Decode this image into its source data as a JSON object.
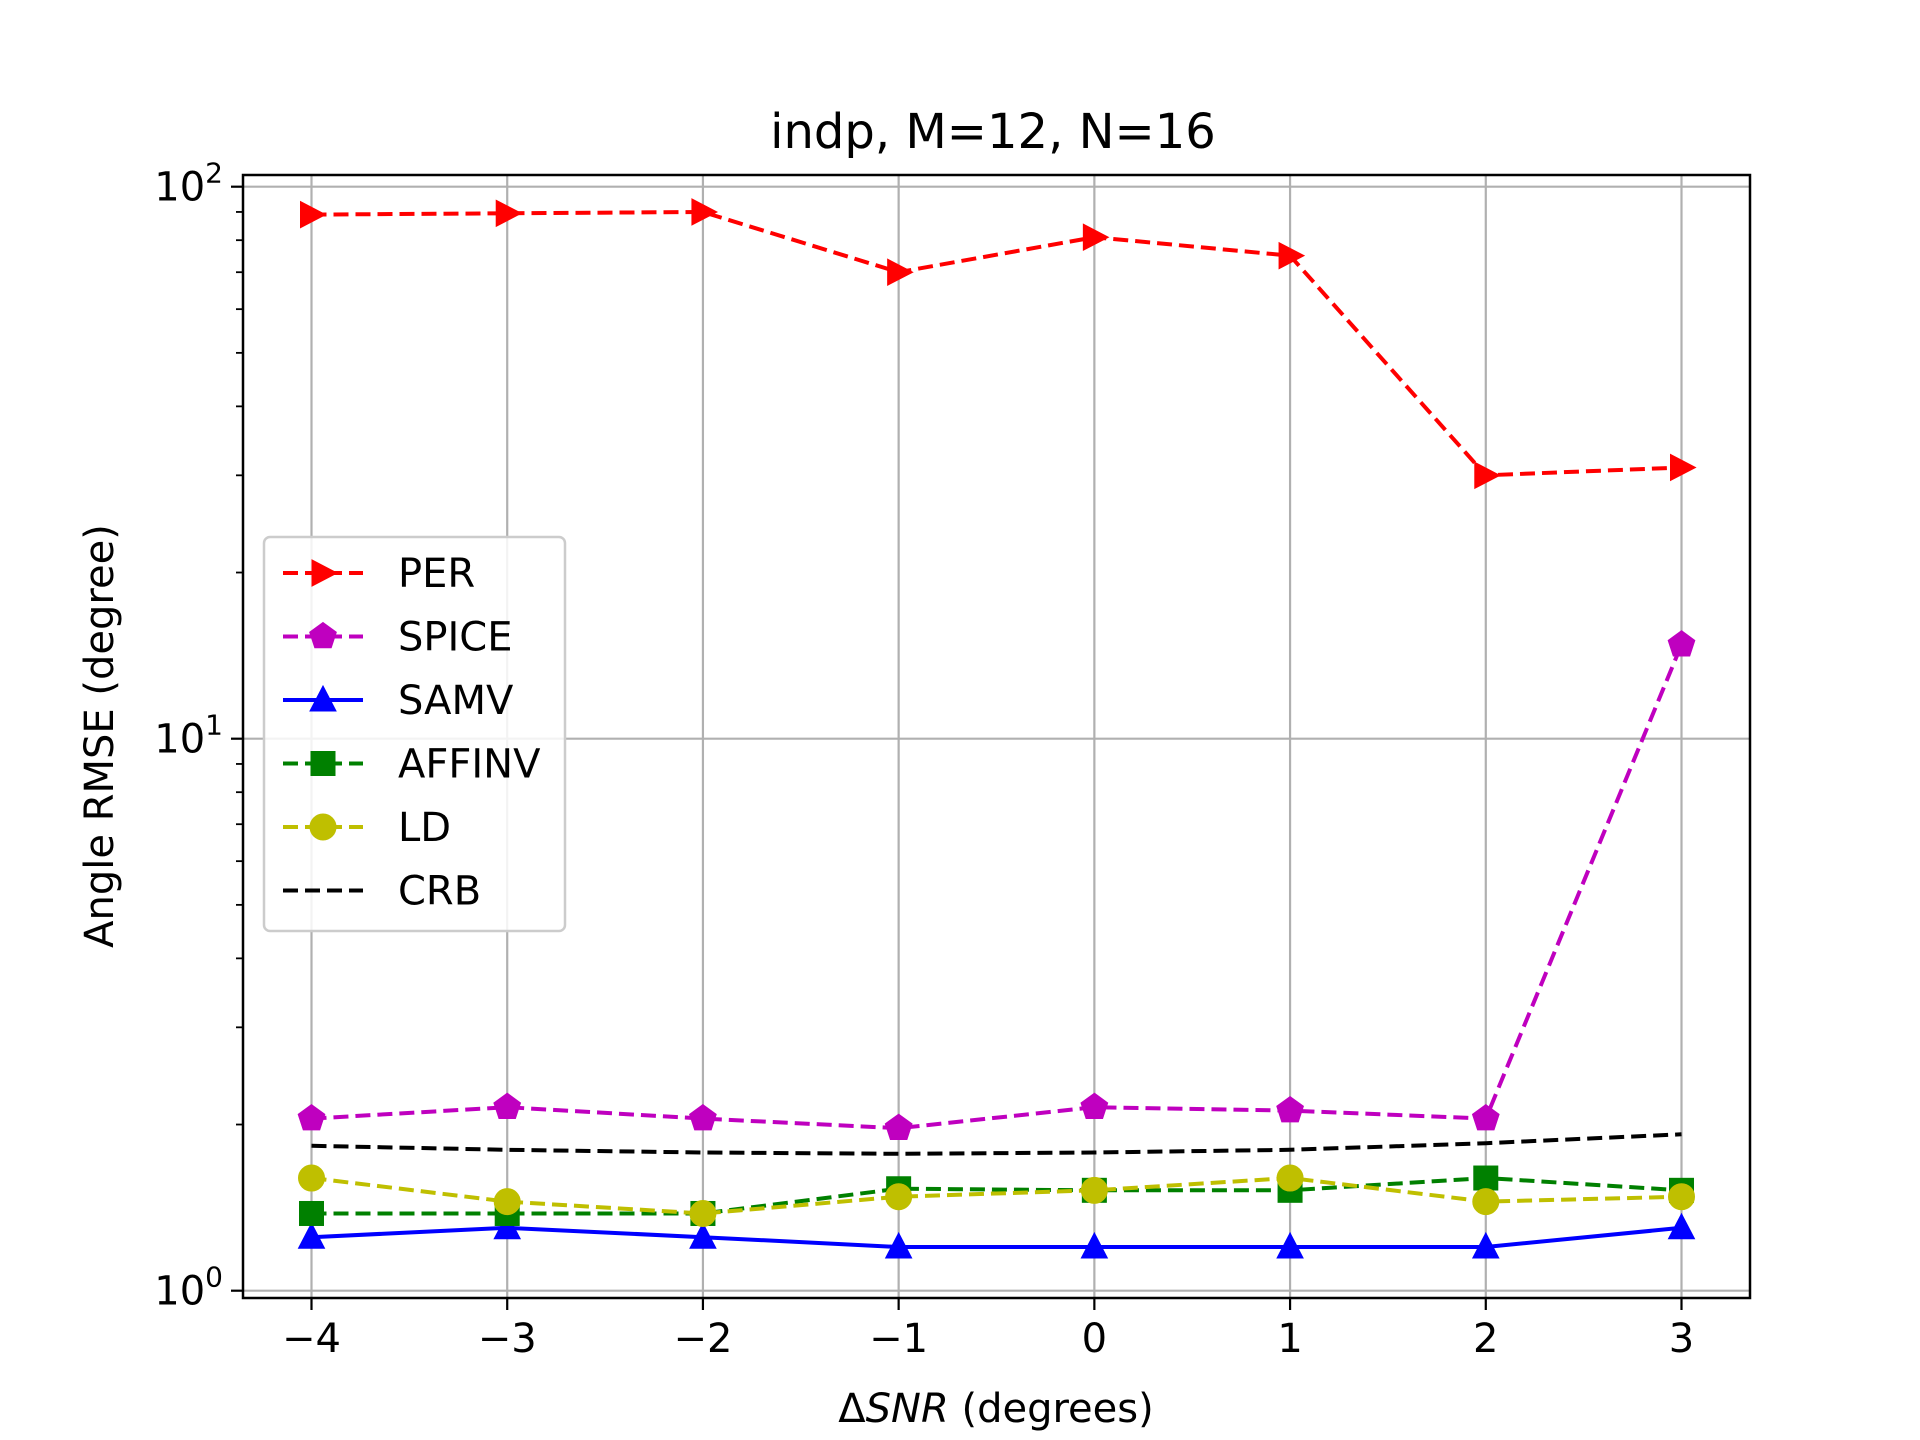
{
  "chart_data": {
    "type": "line",
    "title": "indp, M=12, N=16",
    "xlabel_prefix": "Δ",
    "xlabel_italic": "SNR",
    "xlabel_suffix": " (degrees)",
    "ylabel": "Angle RMSE (degree)",
    "yscale": "log",
    "xlim": [
      -4.35,
      3.35
    ],
    "ylim": [
      0.97,
      105
    ],
    "x_ticks": [
      -4,
      -3,
      -2,
      -1,
      0,
      1,
      2,
      3
    ],
    "x_tick_labels": [
      "−4",
      "−3",
      "−2",
      "−1",
      "0",
      "1",
      "2",
      "3"
    ],
    "y_ticks": [
      1,
      10,
      100
    ],
    "y_tick_labels": [
      {
        "base": "10",
        "exp": "0"
      },
      {
        "base": "10",
        "exp": "1"
      },
      {
        "base": "10",
        "exp": "2"
      }
    ],
    "grid": true,
    "legend_position": "center-left",
    "x": [
      -4,
      -3,
      -2,
      -1,
      0,
      1,
      2,
      3
    ],
    "series": [
      {
        "name": "PER",
        "color": "#ff0000",
        "dash": "dashed",
        "marker": "triangle-right",
        "values": [
          89,
          89.5,
          90,
          70,
          81,
          75,
          30,
          31
        ]
      },
      {
        "name": "SPICE",
        "color": "#bf00bf",
        "dash": "dashed",
        "marker": "pentagon",
        "values": [
          2.05,
          2.15,
          2.05,
          1.97,
          2.15,
          2.12,
          2.05,
          14.8
        ]
      },
      {
        "name": "SAMV",
        "color": "#0000ff",
        "dash": "solid",
        "marker": "triangle-up",
        "values": [
          1.25,
          1.3,
          1.25,
          1.2,
          1.2,
          1.2,
          1.2,
          1.3
        ]
      },
      {
        "name": "AFFINV",
        "color": "#008000",
        "dash": "dashed",
        "marker": "square",
        "values": [
          1.38,
          1.38,
          1.38,
          1.53,
          1.52,
          1.52,
          1.6,
          1.52
        ]
      },
      {
        "name": "LD",
        "color": "#bfbf00",
        "dash": "dashed",
        "marker": "circle",
        "values": [
          1.6,
          1.45,
          1.38,
          1.48,
          1.52,
          1.6,
          1.45,
          1.48
        ]
      },
      {
        "name": "CRB",
        "color": "#000000",
        "dash": "dashed",
        "marker": "none",
        "values": [
          1.83,
          1.8,
          1.78,
          1.77,
          1.78,
          1.8,
          1.85,
          1.92
        ]
      }
    ]
  }
}
